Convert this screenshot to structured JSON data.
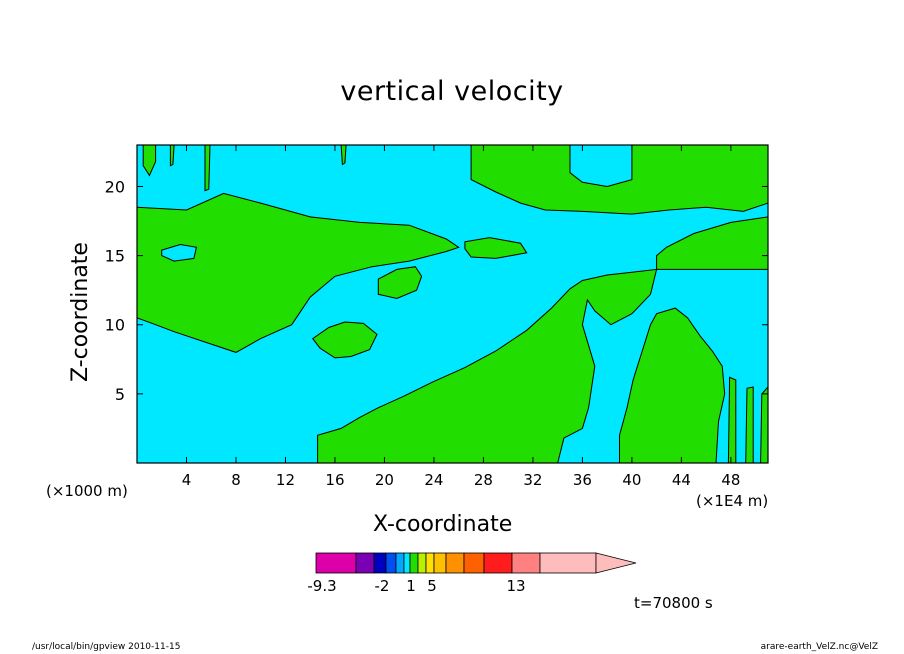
{
  "chart_data": {
    "type": "contour",
    "title": "vertical velocity",
    "xlabel": "X-coordinate",
    "ylabel": "Z-coordinate",
    "x_unit_note": "(×1000 m)",
    "x_unit_note2": "(×1E4 m)",
    "xlim": [
      0,
      51
    ],
    "ylim": [
      0,
      23
    ],
    "x_ticks": [
      4,
      8,
      12,
      16,
      20,
      24,
      28,
      32,
      36,
      40,
      44,
      48
    ],
    "y_ticks": [
      5,
      10,
      15,
      20
    ],
    "background_fill": "#00e8ff",
    "region_fill": "#22dd00",
    "line_color": "#000000",
    "regions": [
      {
        "name": "upper-left-tongue",
        "points": [
          [
            0,
            18.5
          ],
          [
            4,
            18.3
          ],
          [
            7,
            19.5
          ],
          [
            10,
            18.8
          ],
          [
            14,
            17.8
          ],
          [
            18,
            17.4
          ],
          [
            22,
            17.2
          ],
          [
            25,
            16.2
          ],
          [
            26,
            15.6
          ],
          [
            25,
            15.3
          ],
          [
            22,
            14.6
          ],
          [
            19,
            14.2
          ],
          [
            16,
            13.5
          ],
          [
            14,
            12
          ],
          [
            12.5,
            10
          ],
          [
            10,
            9
          ],
          [
            8,
            8
          ],
          [
            6,
            8.6
          ],
          [
            3,
            9.5
          ],
          [
            1.5,
            10
          ],
          [
            0,
            10.5
          ]
        ]
      },
      {
        "name": "left-hole",
        "points": [
          [
            2,
            15.4
          ],
          [
            3.5,
            15.8
          ],
          [
            4.8,
            15.6
          ],
          [
            4.6,
            14.8
          ],
          [
            3,
            14.6
          ],
          [
            2,
            15
          ]
        ]
      },
      {
        "name": "top-left-strip-a",
        "points": [
          [
            0.5,
            23
          ],
          [
            1.5,
            23
          ],
          [
            1.5,
            21.8
          ],
          [
            1,
            20.8
          ],
          [
            0.5,
            21.5
          ]
        ]
      },
      {
        "name": "top-left-strip-b",
        "points": [
          [
            2.7,
            23
          ],
          [
            3,
            23
          ],
          [
            2.9,
            21.6
          ],
          [
            2.7,
            21.5
          ]
        ]
      },
      {
        "name": "top-left-strip-c",
        "points": [
          [
            5.5,
            23
          ],
          [
            5.9,
            23
          ],
          [
            5.8,
            19.8
          ],
          [
            5.5,
            19.7
          ]
        ]
      },
      {
        "name": "top-mid-sliver",
        "points": [
          [
            16.5,
            23
          ],
          [
            16.9,
            23
          ],
          [
            16.8,
            21.7
          ],
          [
            16.6,
            21.6
          ]
        ]
      },
      {
        "name": "upper-right-band",
        "points": [
          [
            27,
            23
          ],
          [
            51,
            23
          ],
          [
            51,
            18.8
          ],
          [
            49,
            18.2
          ],
          [
            46,
            18.5
          ],
          [
            43,
            18.3
          ],
          [
            40,
            18
          ],
          [
            36,
            18.2
          ],
          [
            33,
            18.3
          ],
          [
            31,
            18.8
          ],
          [
            29,
            19.6
          ],
          [
            27,
            20.5
          ]
        ]
      },
      {
        "name": "upper-right-hole",
        "points": [
          [
            35,
            23
          ],
          [
            40,
            23
          ],
          [
            40,
            20.5
          ],
          [
            38,
            20
          ],
          [
            36,
            20.3
          ],
          [
            35,
            21
          ]
        ]
      },
      {
        "name": "mid-right-band",
        "points": [
          [
            42,
            14
          ],
          [
            51,
            14
          ],
          [
            51,
            17.8
          ],
          [
            48,
            17.4
          ],
          [
            45,
            16.6
          ],
          [
            42.8,
            15.6
          ],
          [
            42,
            15
          ]
        ]
      },
      {
        "name": "blob-28",
        "points": [
          [
            26.5,
            16
          ],
          [
            28.5,
            16.3
          ],
          [
            31,
            15.9
          ],
          [
            31.5,
            15.2
          ],
          [
            29,
            14.8
          ],
          [
            27,
            14.9
          ],
          [
            26.5,
            15.5
          ]
        ]
      },
      {
        "name": "blob-22",
        "points": [
          [
            19.5,
            13.3
          ],
          [
            21,
            14
          ],
          [
            22.5,
            14.2
          ],
          [
            23,
            13.5
          ],
          [
            22.6,
            12.5
          ],
          [
            21,
            11.9
          ],
          [
            19.5,
            12.2
          ]
        ]
      },
      {
        "name": "blob-17",
        "points": [
          [
            14.2,
            9
          ],
          [
            15.5,
            9.8
          ],
          [
            16.8,
            10.2
          ],
          [
            18.3,
            10.1
          ],
          [
            19.4,
            9.3
          ],
          [
            18.8,
            8.2
          ],
          [
            17.3,
            7.7
          ],
          [
            16,
            7.6
          ],
          [
            14.8,
            8.3
          ]
        ]
      },
      {
        "name": "lower-center",
        "points": [
          [
            14.6,
            0
          ],
          [
            14.6,
            2
          ],
          [
            16.5,
            2.5
          ],
          [
            18,
            3.3
          ],
          [
            19.5,
            4
          ],
          [
            21.5,
            4.8
          ],
          [
            24,
            5.9
          ],
          [
            26.5,
            6.9
          ],
          [
            29,
            8.1
          ],
          [
            31.5,
            9.6
          ],
          [
            33.5,
            11.2
          ],
          [
            35,
            12.6
          ],
          [
            36,
            13.2
          ],
          [
            38,
            13.6
          ],
          [
            40,
            13.8
          ],
          [
            42,
            14
          ],
          [
            41.5,
            12.2
          ],
          [
            40,
            10.8
          ],
          [
            38.3,
            10
          ],
          [
            37,
            11
          ],
          [
            36.4,
            11.8
          ],
          [
            36,
            10
          ],
          [
            37,
            7
          ],
          [
            36.5,
            4
          ],
          [
            36,
            2.5
          ],
          [
            34.5,
            1.8
          ],
          [
            34,
            0
          ]
        ]
      },
      {
        "name": "lower-right",
        "points": [
          [
            39,
            0
          ],
          [
            39,
            2
          ],
          [
            39.6,
            4
          ],
          [
            40.1,
            6
          ],
          [
            40.8,
            8
          ],
          [
            41.5,
            10
          ],
          [
            42,
            10.8
          ],
          [
            43.5,
            11.2
          ],
          [
            44.5,
            10.5
          ],
          [
            45.5,
            9.2
          ],
          [
            46.5,
            8.1
          ],
          [
            47.3,
            7
          ],
          [
            47.5,
            5
          ],
          [
            47,
            3
          ],
          [
            46.8,
            0
          ]
        ]
      },
      {
        "name": "bottom-right-strips-a",
        "points": [
          [
            47.8,
            0
          ],
          [
            48.4,
            0
          ],
          [
            48.4,
            6
          ],
          [
            47.9,
            6.2
          ]
        ]
      },
      {
        "name": "bottom-right-strips-b",
        "points": [
          [
            49.2,
            0
          ],
          [
            49.8,
            0
          ],
          [
            49.8,
            5.5
          ],
          [
            49.3,
            5.4
          ]
        ]
      },
      {
        "name": "bottom-right-strips-c",
        "points": [
          [
            50.4,
            0
          ],
          [
            51,
            0
          ],
          [
            51,
            5.5
          ],
          [
            50.5,
            5
          ]
        ]
      }
    ],
    "colorbar": {
      "labels": [
        "-9.3",
        "-2",
        "1",
        "5",
        "13"
      ],
      "colors": [
        "#dd00aa",
        "#7a00b4",
        "#0000c0",
        "#0050f0",
        "#00a8ff",
        "#00e8ff",
        "#22dd00",
        "#b8f000",
        "#ffe000",
        "#ffc000",
        "#ff9000",
        "#ff6000",
        "#ff1c1c",
        "#ff8080",
        "#ffbcbc"
      ]
    }
  },
  "footer": {
    "left": "/usr/local/bin/gpview   2010-11-15",
    "right": "arare-earth_VelZ.nc@VelZ",
    "time": "t=70800  s"
  }
}
